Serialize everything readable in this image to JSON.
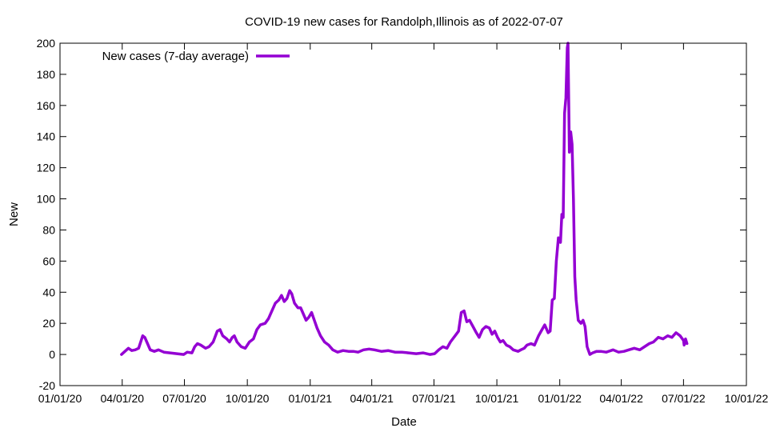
{
  "chart_data": {
    "type": "line",
    "title": "COVID-19 new cases for Randolph,Illinois as of 2022-07-07",
    "xlabel": "Date",
    "ylabel": "New",
    "xlim": [
      "2020-01-01",
      "2022-10-01"
    ],
    "ylim": [
      -20,
      200
    ],
    "grid": false,
    "legend_position": "top-left",
    "line_color": "#9400d3",
    "x_ticks": [
      {
        "date": "2020-01-01",
        "label": "01/01/20"
      },
      {
        "date": "2020-04-01",
        "label": "04/01/20"
      },
      {
        "date": "2020-07-01",
        "label": "07/01/20"
      },
      {
        "date": "2020-10-01",
        "label": "10/01/20"
      },
      {
        "date": "2021-01-01",
        "label": "01/01/21"
      },
      {
        "date": "2021-04-01",
        "label": "04/01/21"
      },
      {
        "date": "2021-07-01",
        "label": "07/01/21"
      },
      {
        "date": "2021-10-01",
        "label": "10/01/21"
      },
      {
        "date": "2022-01-01",
        "label": "01/01/22"
      },
      {
        "date": "2022-04-01",
        "label": "04/01/22"
      },
      {
        "date": "2022-07-01",
        "label": "07/01/22"
      },
      {
        "date": "2022-10-01",
        "label": "10/01/22"
      }
    ],
    "y_ticks": [
      {
        "value": -20,
        "label": "-20"
      },
      {
        "value": 0,
        "label": "0"
      },
      {
        "value": 20,
        "label": "20"
      },
      {
        "value": 40,
        "label": "40"
      },
      {
        "value": 60,
        "label": "60"
      },
      {
        "value": 80,
        "label": "80"
      },
      {
        "value": 100,
        "label": "100"
      },
      {
        "value": 120,
        "label": "120"
      },
      {
        "value": 140,
        "label": "140"
      },
      {
        "value": 160,
        "label": "160"
      },
      {
        "value": 180,
        "label": "180"
      },
      {
        "value": 200,
        "label": "200"
      }
    ],
    "series": [
      {
        "name": "New cases (7-day average)",
        "points": [
          [
            "2020-03-31",
            0
          ],
          [
            "2020-04-05",
            2
          ],
          [
            "2020-04-10",
            4
          ],
          [
            "2020-04-15",
            2.5
          ],
          [
            "2020-04-20",
            3
          ],
          [
            "2020-04-25",
            4
          ],
          [
            "2020-05-01",
            12
          ],
          [
            "2020-05-04",
            11
          ],
          [
            "2020-05-08",
            7
          ],
          [
            "2020-05-12",
            3
          ],
          [
            "2020-05-18",
            2
          ],
          [
            "2020-05-24",
            3
          ],
          [
            "2020-06-01",
            1.5
          ],
          [
            "2020-06-10",
            1
          ],
          [
            "2020-06-20",
            0.5
          ],
          [
            "2020-06-30",
            0
          ],
          [
            "2020-07-05",
            1.5
          ],
          [
            "2020-07-12",
            1
          ],
          [
            "2020-07-16",
            5
          ],
          [
            "2020-07-20",
            7
          ],
          [
            "2020-07-25",
            6
          ],
          [
            "2020-08-01",
            4
          ],
          [
            "2020-08-06",
            5
          ],
          [
            "2020-08-12",
            8
          ],
          [
            "2020-08-18",
            15
          ],
          [
            "2020-08-22",
            16
          ],
          [
            "2020-08-26",
            12
          ],
          [
            "2020-09-01",
            10
          ],
          [
            "2020-09-05",
            8
          ],
          [
            "2020-09-09",
            11
          ],
          [
            "2020-09-12",
            12
          ],
          [
            "2020-09-16",
            8
          ],
          [
            "2020-09-22",
            5
          ],
          [
            "2020-09-28",
            4
          ],
          [
            "2020-10-04",
            8
          ],
          [
            "2020-10-10",
            10
          ],
          [
            "2020-10-15",
            16
          ],
          [
            "2020-10-20",
            19
          ],
          [
            "2020-10-27",
            20
          ],
          [
            "2020-11-01",
            23
          ],
          [
            "2020-11-06",
            28
          ],
          [
            "2020-11-11",
            33
          ],
          [
            "2020-11-16",
            35
          ],
          [
            "2020-11-20",
            38
          ],
          [
            "2020-11-24",
            34
          ],
          [
            "2020-11-28",
            36
          ],
          [
            "2020-12-02",
            41
          ],
          [
            "2020-12-05",
            39
          ],
          [
            "2020-12-09",
            33
          ],
          [
            "2020-12-14",
            30
          ],
          [
            "2020-12-18",
            30
          ],
          [
            "2020-12-22",
            26
          ],
          [
            "2020-12-26",
            22
          ],
          [
            "2020-12-30",
            24
          ],
          [
            "2021-01-03",
            27
          ],
          [
            "2021-01-07",
            22
          ],
          [
            "2021-01-11",
            17
          ],
          [
            "2021-01-16",
            12
          ],
          [
            "2021-01-22",
            8
          ],
          [
            "2021-01-28",
            6
          ],
          [
            "2021-02-03",
            3
          ],
          [
            "2021-02-10",
            1.5
          ],
          [
            "2021-02-18",
            2.5
          ],
          [
            "2021-02-26",
            2
          ],
          [
            "2021-03-05",
            2
          ],
          [
            "2021-03-12",
            1.5
          ],
          [
            "2021-03-20",
            3
          ],
          [
            "2021-03-28",
            3.5
          ],
          [
            "2021-04-05",
            3
          ],
          [
            "2021-04-15",
            2
          ],
          [
            "2021-04-25",
            2.5
          ],
          [
            "2021-05-05",
            1.5
          ],
          [
            "2021-05-15",
            1.5
          ],
          [
            "2021-05-25",
            1
          ],
          [
            "2021-06-05",
            0.5
          ],
          [
            "2021-06-15",
            1
          ],
          [
            "2021-06-25",
            0
          ],
          [
            "2021-07-02",
            0.5
          ],
          [
            "2021-07-08",
            3
          ],
          [
            "2021-07-14",
            5
          ],
          [
            "2021-07-20",
            4
          ],
          [
            "2021-07-25",
            8
          ],
          [
            "2021-08-01",
            12
          ],
          [
            "2021-08-06",
            15
          ],
          [
            "2021-08-10",
            27
          ],
          [
            "2021-08-14",
            28
          ],
          [
            "2021-08-18",
            21
          ],
          [
            "2021-08-22",
            22
          ],
          [
            "2021-08-27",
            18
          ],
          [
            "2021-09-01",
            14
          ],
          [
            "2021-09-05",
            11
          ],
          [
            "2021-09-10",
            16
          ],
          [
            "2021-09-15",
            18
          ],
          [
            "2021-09-20",
            17
          ],
          [
            "2021-09-24",
            13
          ],
          [
            "2021-09-28",
            15
          ],
          [
            "2021-10-02",
            11
          ],
          [
            "2021-10-06",
            8
          ],
          [
            "2021-10-10",
            9
          ],
          [
            "2021-10-15",
            6
          ],
          [
            "2021-10-20",
            5
          ],
          [
            "2021-10-25",
            3
          ],
          [
            "2021-11-01",
            2
          ],
          [
            "2021-11-05",
            3
          ],
          [
            "2021-11-10",
            4
          ],
          [
            "2021-11-14",
            6
          ],
          [
            "2021-11-20",
            7
          ],
          [
            "2021-11-25",
            6
          ],
          [
            "2021-12-01",
            12
          ],
          [
            "2021-12-06",
            16
          ],
          [
            "2021-12-10",
            19
          ],
          [
            "2021-12-15",
            14
          ],
          [
            "2021-12-18",
            15
          ],
          [
            "2021-12-21",
            35
          ],
          [
            "2021-12-24",
            36
          ],
          [
            "2021-12-27",
            60
          ],
          [
            "2021-12-30",
            75
          ],
          [
            "2022-01-02",
            72
          ],
          [
            "2022-01-04",
            90
          ],
          [
            "2022-01-06",
            88
          ],
          [
            "2022-01-08",
            155
          ],
          [
            "2022-01-10",
            165
          ],
          [
            "2022-01-12",
            197
          ],
          [
            "2022-01-13",
            200
          ],
          [
            "2022-01-15",
            130
          ],
          [
            "2022-01-17",
            143
          ],
          [
            "2022-01-19",
            135
          ],
          [
            "2022-01-21",
            100
          ],
          [
            "2022-01-23",
            50
          ],
          [
            "2022-01-25",
            35
          ],
          [
            "2022-01-28",
            22
          ],
          [
            "2022-02-01",
            20
          ],
          [
            "2022-02-04",
            22
          ],
          [
            "2022-02-07",
            18
          ],
          [
            "2022-02-10",
            5
          ],
          [
            "2022-02-14",
            0
          ],
          [
            "2022-02-18",
            1
          ],
          [
            "2022-02-24",
            2
          ],
          [
            "2022-03-02",
            2
          ],
          [
            "2022-03-10",
            1.5
          ],
          [
            "2022-03-20",
            3
          ],
          [
            "2022-03-28",
            1.5
          ],
          [
            "2022-04-05",
            2
          ],
          [
            "2022-04-12",
            3
          ],
          [
            "2022-04-20",
            4
          ],
          [
            "2022-04-28",
            3
          ],
          [
            "2022-05-05",
            5
          ],
          [
            "2022-05-12",
            7
          ],
          [
            "2022-05-18",
            8
          ],
          [
            "2022-05-25",
            11
          ],
          [
            "2022-06-01",
            10
          ],
          [
            "2022-06-08",
            12
          ],
          [
            "2022-06-14",
            11
          ],
          [
            "2022-06-20",
            14
          ],
          [
            "2022-06-26",
            12
          ],
          [
            "2022-07-01",
            9
          ],
          [
            "2022-07-02",
            6
          ],
          [
            "2022-07-04",
            10
          ],
          [
            "2022-07-06",
            7
          ]
        ]
      }
    ]
  }
}
